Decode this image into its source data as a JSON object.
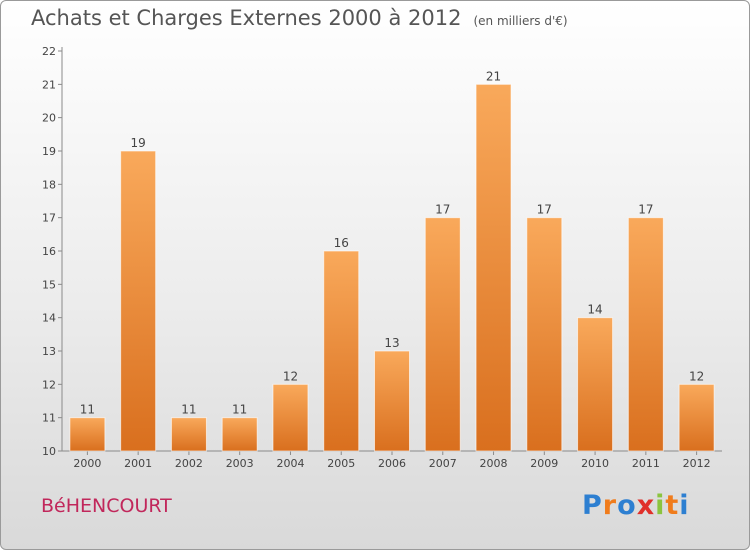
{
  "header": {
    "title": "Achats et Charges Externes 2000 à 2012",
    "unit": "(en milliers d'€)"
  },
  "footer": {
    "commune": "BéHENCOURT",
    "logo_text": "Proxiti",
    "logo_colors": [
      "#2d7fd1",
      "#f07c1c",
      "#2d7fd1",
      "#e0302a",
      "#8bc43f",
      "#f07c1c",
      "#2d7fd1"
    ]
  },
  "chart_data": {
    "type": "bar",
    "categories": [
      "2000",
      "2001",
      "2002",
      "2003",
      "2004",
      "2005",
      "2006",
      "2007",
      "2008",
      "2009",
      "2010",
      "2011",
      "2012"
    ],
    "values": [
      11,
      19,
      11,
      11,
      12,
      16,
      13,
      17,
      21,
      17,
      14,
      17,
      12
    ],
    "ylim": [
      10,
      22
    ],
    "yticks": [
      10,
      11,
      12,
      13,
      14,
      15,
      16,
      17,
      18,
      19,
      20,
      21,
      22
    ],
    "grid": false,
    "colors": {
      "bar_top": "#f9a95b",
      "bar_bottom": "#d96f1e",
      "axis": "#8a8a8a"
    }
  }
}
